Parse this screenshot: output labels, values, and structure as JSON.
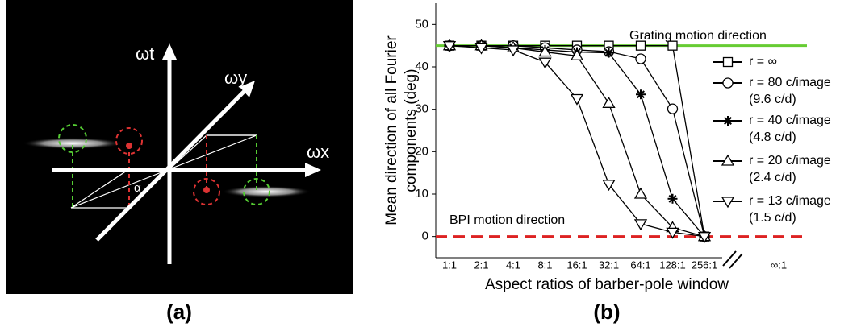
{
  "diagram": {
    "axis_labels": {
      "t": "ωt",
      "y": "ωy",
      "x": "ωx"
    },
    "angle_label": "α"
  },
  "panel_labels": [
    "(a)",
    "(b)"
  ],
  "chart_data": {
    "type": "line",
    "xlabel": "Aspect ratios of barber-pole window",
    "ylabel": [
      "Mean direction of all Fourier",
      "components (deg)"
    ],
    "categories": [
      "1:1",
      "2:1",
      "4:1",
      "8:1",
      "16:1",
      "32:1",
      "64:1",
      "128:1",
      "256:1",
      "∞:1"
    ],
    "axis_break": true,
    "ylim": [
      -5,
      55
    ],
    "yticks": [
      0,
      10,
      20,
      30,
      40,
      50
    ],
    "reference_lines": [
      {
        "value": 45,
        "label": "Grating motion  direction",
        "color": "#66cc33",
        "dashed": false
      },
      {
        "value": 0,
        "label": "BPI motion direction",
        "color": "#dd2222",
        "dashed": true
      }
    ],
    "series": [
      {
        "name": "r = ∞",
        "marker": "square",
        "color": "#000000",
        "values": [
          45,
          45,
          45,
          45,
          45,
          45,
          45,
          45,
          0,
          null
        ]
      },
      {
        "name": "r = 80 c/image",
        "note": "(9.6 c/d)",
        "marker": "circle",
        "color": "#000000",
        "values": [
          45,
          45,
          45,
          44.5,
          44,
          43.6,
          41.9,
          30.1,
          0,
          null
        ]
      },
      {
        "name": "r = 40 c/image",
        "note": "(4.8 c/d)",
        "marker": "asterisk",
        "color": "#000000",
        "values": [
          45,
          45,
          44.5,
          44,
          43.5,
          43.3,
          33.5,
          8.9,
          0,
          null
        ]
      },
      {
        "name": "r = 20 c/image",
        "note": "(2.4 c/d)",
        "marker": "triangle-up",
        "color": "#000000",
        "values": [
          45,
          45,
          44.5,
          43.5,
          42.6,
          31.4,
          10,
          2.1,
          0,
          null
        ]
      },
      {
        "name": "r = 13 c/image",
        "note": "(1.5 c/d)",
        "marker": "triangle-down",
        "color": "#000000",
        "values": [
          45,
          44.5,
          44,
          41.1,
          32.5,
          12.3,
          3,
          1,
          0,
          null
        ]
      }
    ]
  }
}
